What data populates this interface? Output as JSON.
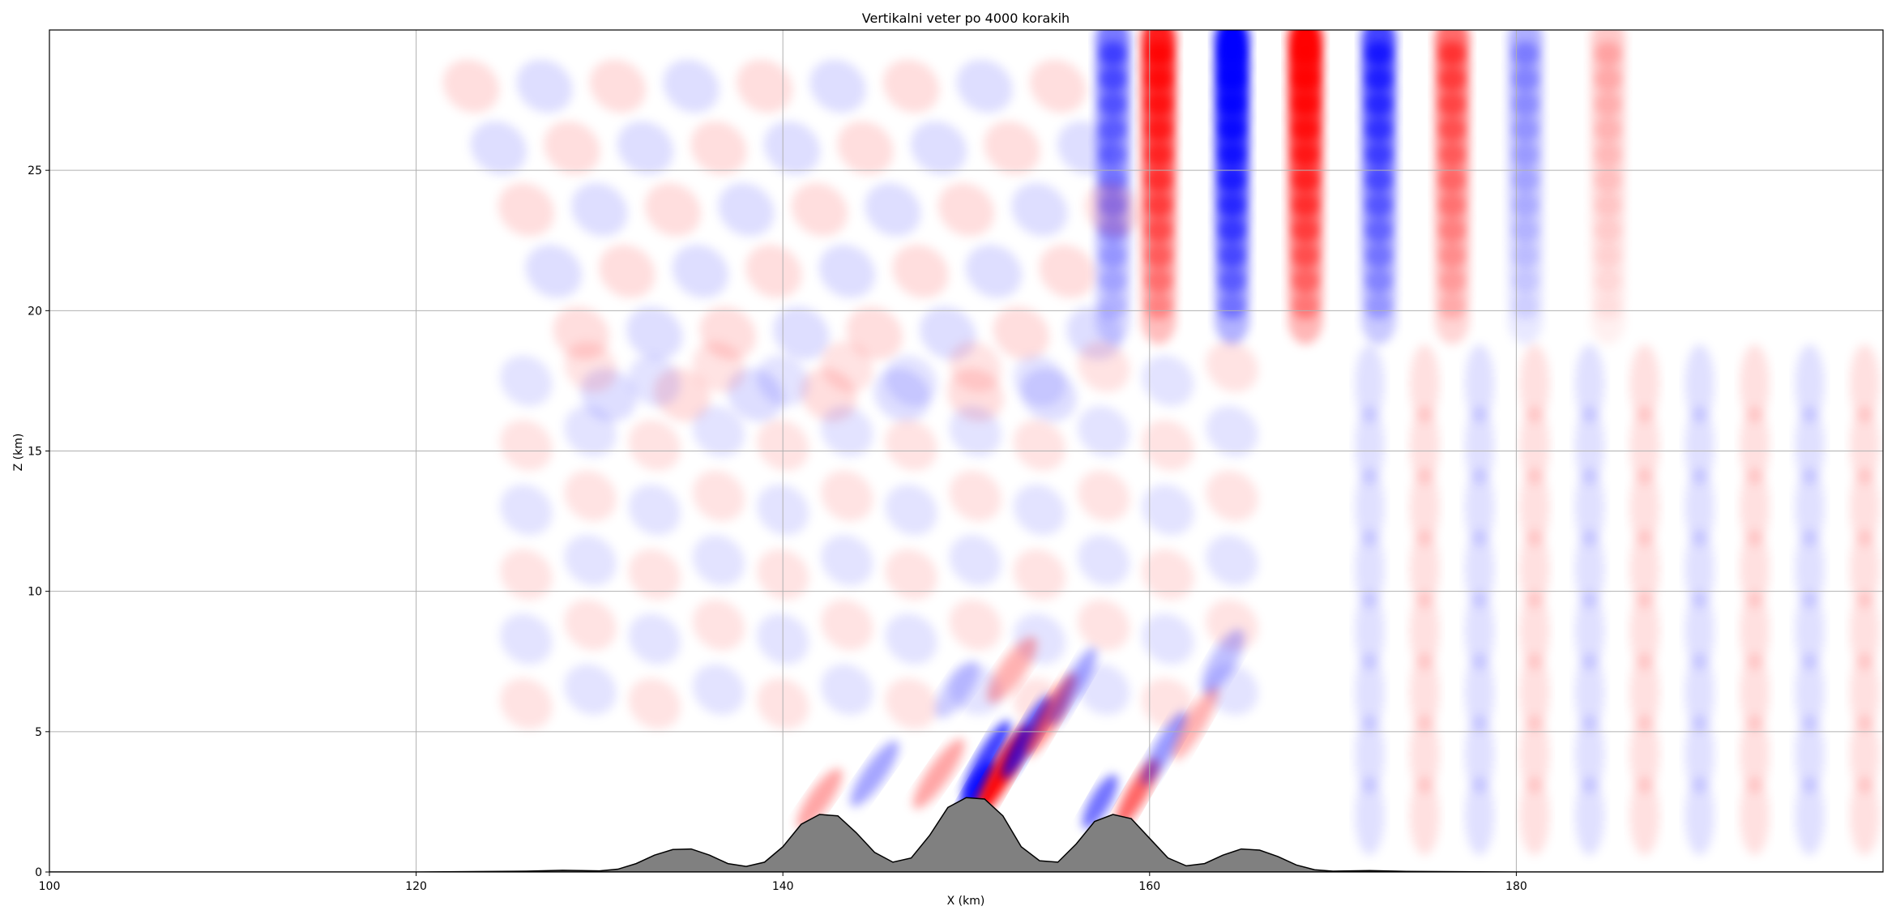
{
  "chart_data": {
    "type": "heatmap",
    "title": "Vertikalni veter po 4000 korakih",
    "xlabel": "X (km)",
    "ylabel": "Z (km)",
    "xlim": [
      100,
      200
    ],
    "ylim": [
      0,
      30
    ],
    "xticks": [
      "100",
      "120",
      "140",
      "160",
      "180"
    ],
    "xtick_values": [
      100,
      120,
      140,
      160,
      180
    ],
    "yticks": [
      "0",
      "5",
      "10",
      "15",
      "20",
      "25"
    ],
    "ytick_values": [
      0,
      5,
      10,
      15,
      20,
      25
    ],
    "grid": true,
    "colormap": "bwr",
    "colors": {
      "positive": "#ff0000",
      "negative": "#0000ff",
      "zero": "#ffffff",
      "terrain": "#808080"
    },
    "terrain": {
      "x": [
        100,
        120,
        126,
        128,
        130,
        131,
        132,
        133,
        134,
        135,
        136,
        137,
        138,
        139,
        140,
        141,
        142,
        143,
        144,
        145,
        146,
        147,
        148,
        149,
        150,
        151,
        152,
        153,
        154,
        155,
        156,
        157,
        158,
        159,
        160,
        161,
        162,
        163,
        164,
        165,
        166,
        167,
        168,
        169,
        170,
        172,
        174,
        180,
        200
      ],
      "z": [
        0,
        0,
        0.03,
        0.06,
        0.04,
        0.1,
        0.3,
        0.6,
        0.8,
        0.82,
        0.6,
        0.3,
        0.2,
        0.35,
        0.9,
        1.7,
        2.05,
        2.0,
        1.4,
        0.7,
        0.35,
        0.5,
        1.3,
        2.3,
        2.65,
        2.6,
        2.0,
        0.9,
        0.4,
        0.35,
        1.0,
        1.8,
        2.05,
        1.9,
        1.2,
        0.5,
        0.22,
        0.3,
        0.6,
        0.82,
        0.78,
        0.55,
        0.25,
        0.08,
        0.03,
        0.05,
        0.02,
        0,
        0
      ]
    },
    "field": {
      "description_hidden": false,
      "upper_columns": [
        {
          "x": 158,
          "sign": -1,
          "amp": 0.5
        },
        {
          "x": 160.5,
          "sign": 1,
          "amp": 0.85
        },
        {
          "x": 164.5,
          "sign": -1,
          "amp": 1.0
        },
        {
          "x": 168.5,
          "sign": 1,
          "amp": 0.95
        },
        {
          "x": 172.5,
          "sign": -1,
          "amp": 0.7
        },
        {
          "x": 176.5,
          "sign": 1,
          "amp": 0.55
        },
        {
          "x": 180.5,
          "sign": -1,
          "amp": 0.3
        },
        {
          "x": 185,
          "sign": 1,
          "amp": 0.2
        }
      ]
    }
  }
}
